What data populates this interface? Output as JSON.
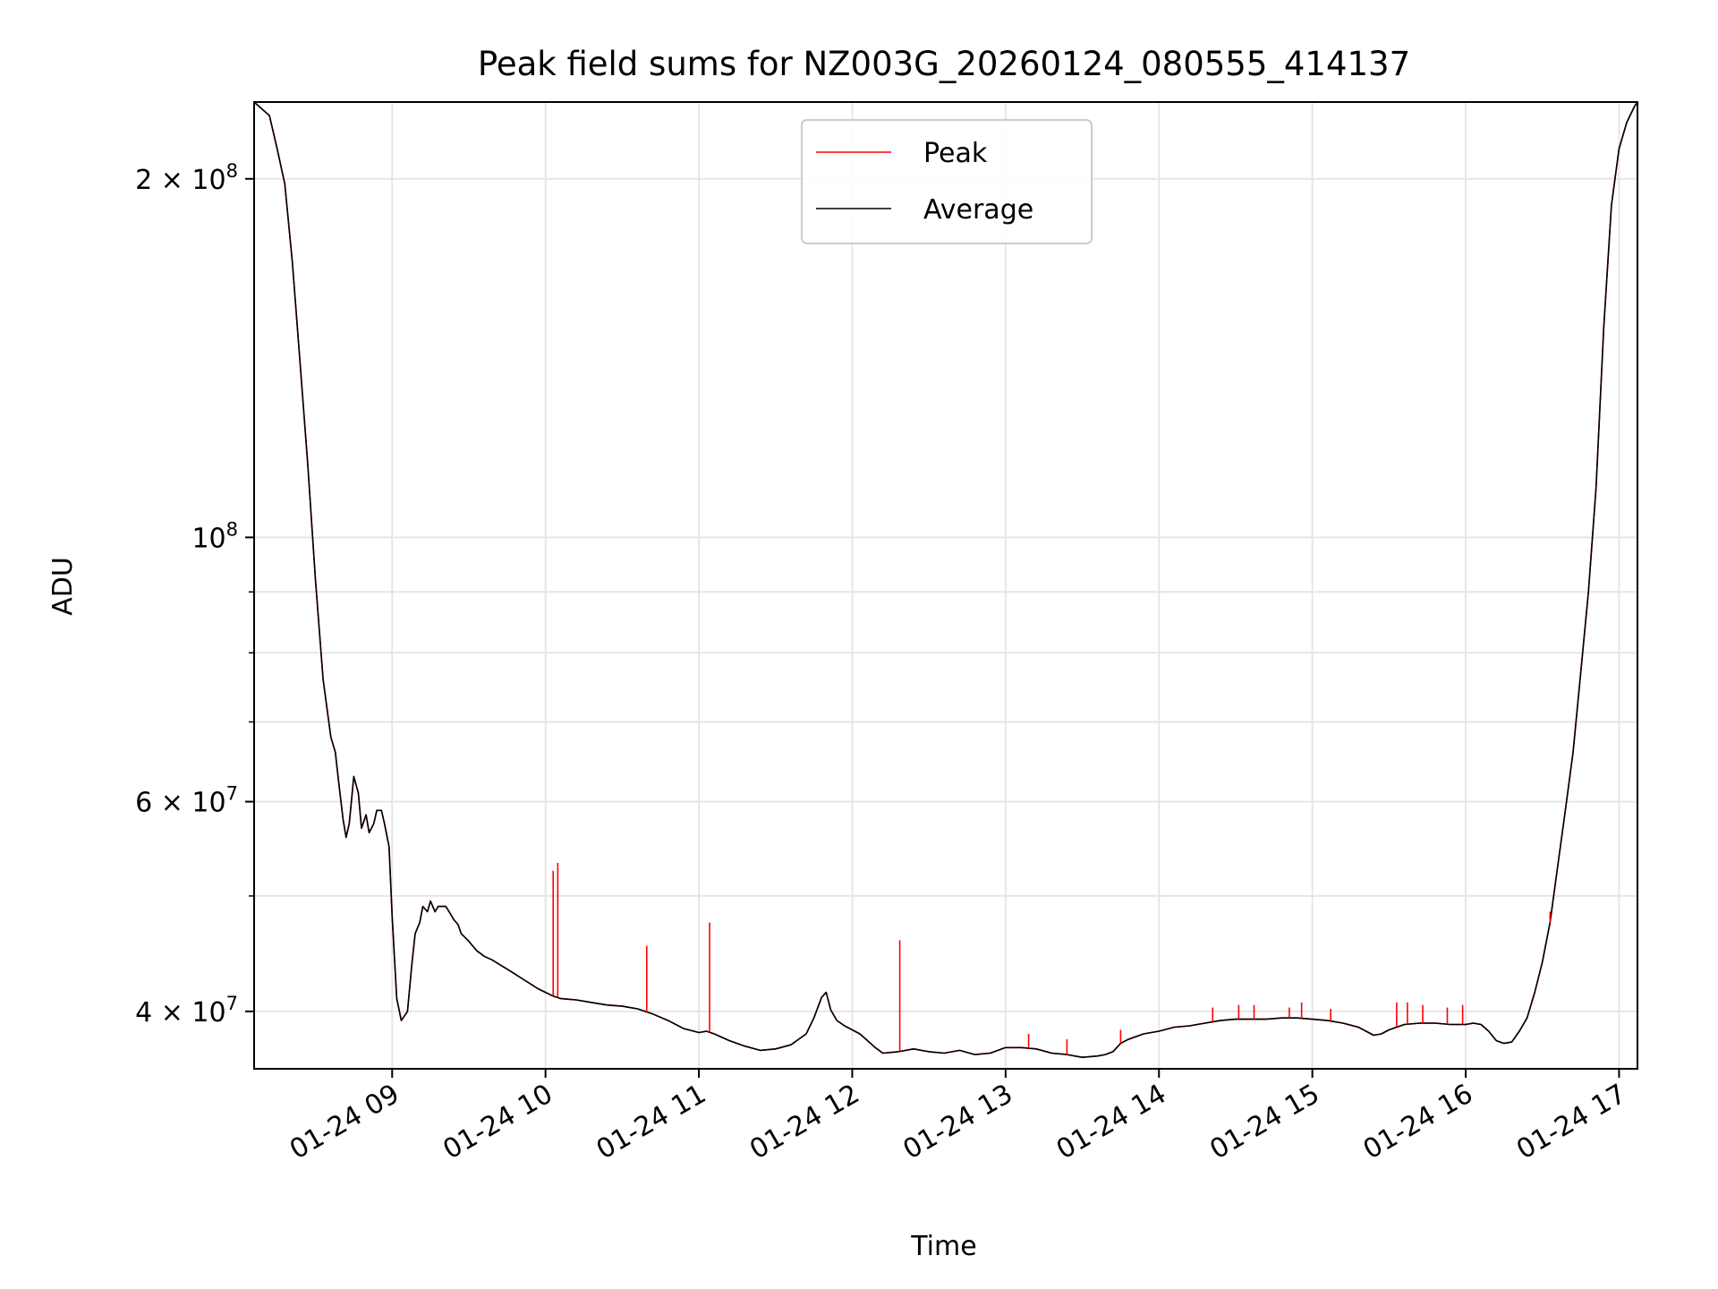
{
  "chart_data": {
    "type": "line",
    "title": "Peak field sums for NZ003G_20260124_080555_414137",
    "xlabel": "Time",
    "ylabel": "ADU",
    "yscale": "log",
    "ylim": [
      35800000,
      232000000
    ],
    "xlim_hours": [
      8.1,
      17.12
    ],
    "grid": true,
    "legend_position": "upper center",
    "x_ticks": [
      {
        "hour": 9,
        "label": "01-24 09"
      },
      {
        "hour": 10,
        "label": "01-24 10"
      },
      {
        "hour": 11,
        "label": "01-24 11"
      },
      {
        "hour": 12,
        "label": "01-24 12"
      },
      {
        "hour": 13,
        "label": "01-24 13"
      },
      {
        "hour": 14,
        "label": "01-24 14"
      },
      {
        "hour": 15,
        "label": "01-24 15"
      },
      {
        "hour": 16,
        "label": "01-24 16"
      },
      {
        "hour": 17,
        "label": "01-24 17"
      }
    ],
    "y_ticks": [
      {
        "value": 40000000,
        "mantissa": "4",
        "exponent": "7",
        "times": "×",
        "base": "10"
      },
      {
        "value": 60000000,
        "mantissa": "6",
        "exponent": "7",
        "times": "×",
        "base": "10"
      },
      {
        "value": 100000000,
        "mantissa": "",
        "exponent": "8",
        "times": "",
        "base": "10"
      },
      {
        "value": 200000000,
        "mantissa": "2",
        "exponent": "8",
        "times": "×",
        "base": "10"
      }
    ],
    "y_minor_ticks": [
      50000000,
      70000000,
      80000000,
      90000000
    ],
    "series": [
      {
        "name": "Peak",
        "color": "#ff0000",
        "description": "tracks Average except for spikes",
        "spikes": [
          {
            "hour": 10.05,
            "value": 52500000
          },
          {
            "hour": 10.08,
            "value": 53300000
          },
          {
            "hour": 10.66,
            "value": 45400000
          },
          {
            "hour": 11.07,
            "value": 47500000
          },
          {
            "hour": 12.31,
            "value": 45900000
          },
          {
            "hour": 13.15,
            "value": 38300000
          },
          {
            "hour": 13.4,
            "value": 37900000
          },
          {
            "hour": 13.75,
            "value": 38600000
          },
          {
            "hour": 14.35,
            "value": 40300000
          },
          {
            "hour": 14.52,
            "value": 40500000
          },
          {
            "hour": 14.62,
            "value": 40500000
          },
          {
            "hour": 14.85,
            "value": 40300000
          },
          {
            "hour": 14.93,
            "value": 40700000
          },
          {
            "hour": 15.12,
            "value": 40200000
          },
          {
            "hour": 15.55,
            "value": 40700000
          },
          {
            "hour": 15.62,
            "value": 40700000
          },
          {
            "hour": 15.72,
            "value": 40500000
          },
          {
            "hour": 15.88,
            "value": 40300000
          },
          {
            "hour": 15.98,
            "value": 40500000
          },
          {
            "hour": 16.55,
            "value": 48500000
          }
        ]
      },
      {
        "name": "Average",
        "color": "#000000",
        "x": [
          8.1,
          8.2,
          8.25,
          8.3,
          8.35,
          8.4,
          8.45,
          8.5,
          8.55,
          8.6,
          8.63,
          8.65,
          8.68,
          8.7,
          8.72,
          8.75,
          8.78,
          8.8,
          8.83,
          8.85,
          8.88,
          8.9,
          8.93,
          8.95,
          8.98,
          9.0,
          9.03,
          9.06,
          9.1,
          9.13,
          9.15,
          9.18,
          9.2,
          9.23,
          9.25,
          9.28,
          9.3,
          9.33,
          9.35,
          9.38,
          9.4,
          9.43,
          9.45,
          9.5,
          9.55,
          9.6,
          9.65,
          9.7,
          9.75,
          9.8,
          9.85,
          9.9,
          9.95,
          10.0,
          10.05,
          10.1,
          10.2,
          10.3,
          10.4,
          10.5,
          10.6,
          10.7,
          10.8,
          10.9,
          11.0,
          11.05,
          11.1,
          11.2,
          11.3,
          11.4,
          11.5,
          11.6,
          11.7,
          11.75,
          11.8,
          11.83,
          11.86,
          11.9,
          11.95,
          12.0,
          12.05,
          12.1,
          12.15,
          12.2,
          12.3,
          12.4,
          12.5,
          12.6,
          12.7,
          12.8,
          12.9,
          13.0,
          13.1,
          13.2,
          13.3,
          13.4,
          13.5,
          13.6,
          13.65,
          13.7,
          13.75,
          13.8,
          13.9,
          14.0,
          14.1,
          14.2,
          14.3,
          14.4,
          14.5,
          14.6,
          14.7,
          14.8,
          14.9,
          15.0,
          15.1,
          15.2,
          15.3,
          15.35,
          15.4,
          15.45,
          15.5,
          15.6,
          15.7,
          15.8,
          15.9,
          16.0,
          16.05,
          16.1,
          16.15,
          16.2,
          16.25,
          16.3,
          16.35,
          16.4,
          16.45,
          16.5,
          16.55,
          16.6,
          16.65,
          16.7,
          16.75,
          16.8,
          16.85,
          16.9,
          16.95,
          17.0,
          17.05,
          17.1,
          17.12
        ],
        "values": [
          232000000,
          226000000,
          212000000,
          198000000,
          170000000,
          140000000,
          115000000,
          92000000,
          76000000,
          68000000,
          66000000,
          62500000,
          58000000,
          56000000,
          57500000,
          63000000,
          61000000,
          57000000,
          58500000,
          56500000,
          57500000,
          59000000,
          59000000,
          57500000,
          55000000,
          48000000,
          41000000,
          39300000,
          40000000,
          44000000,
          46500000,
          47500000,
          49000000,
          48500000,
          49500000,
          48500000,
          49000000,
          49000000,
          49000000,
          48300000,
          47800000,
          47300000,
          46500000,
          45800000,
          45000000,
          44500000,
          44200000,
          43800000,
          43400000,
          43000000,
          42600000,
          42200000,
          41800000,
          41500000,
          41200000,
          41000000,
          40900000,
          40700000,
          40500000,
          40400000,
          40200000,
          39800000,
          39300000,
          38700000,
          38400000,
          38500000,
          38300000,
          37800000,
          37400000,
          37100000,
          37200000,
          37500000,
          38300000,
          39500000,
          41100000,
          41500000,
          40100000,
          39300000,
          38900000,
          38600000,
          38300000,
          37800000,
          37300000,
          36900000,
          37000000,
          37200000,
          37000000,
          36900000,
          37100000,
          36800000,
          36900000,
          37300000,
          37300000,
          37200000,
          36900000,
          36800000,
          36600000,
          36700000,
          36800000,
          37000000,
          37600000,
          37900000,
          38300000,
          38500000,
          38800000,
          38900000,
          39100000,
          39300000,
          39400000,
          39400000,
          39400000,
          39500000,
          39500000,
          39400000,
          39300000,
          39100000,
          38800000,
          38500000,
          38200000,
          38300000,
          38600000,
          39000000,
          39100000,
          39100000,
          39000000,
          39000000,
          39100000,
          39000000,
          38500000,
          37800000,
          37600000,
          37700000,
          38500000,
          39500000,
          41500000,
          44000000,
          47500000,
          53000000,
          59000000,
          66000000,
          77000000,
          90000000,
          110000000,
          150000000,
          190000000,
          212000000,
          223000000,
          230000000,
          232000000
        ]
      }
    ]
  }
}
